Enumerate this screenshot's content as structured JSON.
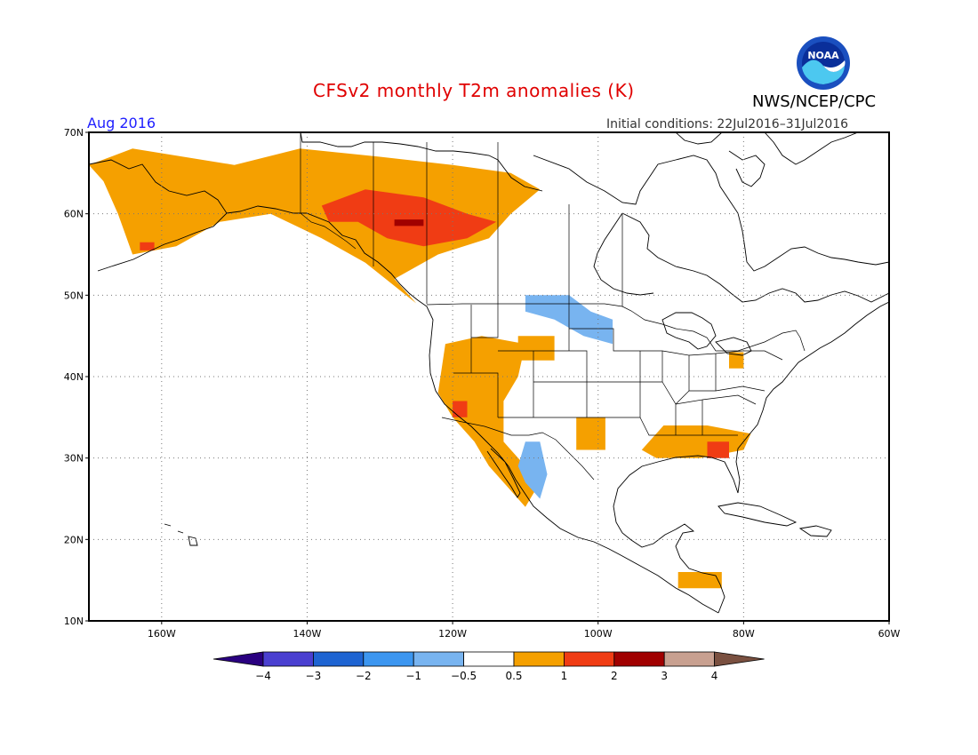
{
  "title": "CFSv2 monthly T2m anomalies (K)",
  "month_label": "Aug 2016",
  "initial_conditions": "Initial conditions: 22Jul2016–31Jul2016",
  "org_label": "NWS/NCEP/CPC",
  "logo_text": "NOAA",
  "colors": {
    "title": "#e00000",
    "month": "#2020ff"
  },
  "map": {
    "lon_range": [
      -170,
      -60
    ],
    "lat_range": [
      10,
      70
    ],
    "lat_ticks": [
      {
        "value": 10,
        "label": "10N"
      },
      {
        "value": 20,
        "label": "20N"
      },
      {
        "value": 30,
        "label": "30N"
      },
      {
        "value": 40,
        "label": "40N"
      },
      {
        "value": 50,
        "label": "50N"
      },
      {
        "value": 60,
        "label": "60N"
      },
      {
        "value": 70,
        "label": "70N"
      }
    ],
    "lon_ticks": [
      {
        "value": -160,
        "label": "160W"
      },
      {
        "value": -140,
        "label": "140W"
      },
      {
        "value": -120,
        "label": "120W"
      },
      {
        "value": -100,
        "label": "100W"
      },
      {
        "value": -80,
        "label": "80W"
      },
      {
        "value": -60,
        "label": "60W"
      }
    ]
  },
  "colorbar": {
    "colors": [
      "#2a0080",
      "#4a3fd0",
      "#1e64d2",
      "#3c96f0",
      "#78b4f0",
      "#ffffff",
      "#f5a000",
      "#f03c14",
      "#a00000",
      "#c8a090",
      "#7a5040"
    ],
    "labels": [
      "−4",
      "−3",
      "−2",
      "−1",
      "−0.5",
      "0.5",
      "1",
      "2",
      "3",
      "4"
    ]
  },
  "anomaly_regions": [
    {
      "category": "0.5 to 1",
      "color": "#f5a000",
      "points": [
        [
          -170,
          66
        ],
        [
          -164,
          68
        ],
        [
          -150,
          66
        ],
        [
          -141,
          68
        ],
        [
          -130,
          67
        ],
        [
          -120,
          66
        ],
        [
          -112,
          65
        ],
        [
          -108,
          63
        ],
        [
          -112,
          60
        ],
        [
          -115,
          57
        ],
        [
          -122,
          55
        ],
        [
          -128,
          52
        ],
        [
          -125,
          49
        ],
        [
          -132,
          54
        ],
        [
          -138,
          57
        ],
        [
          -145,
          60
        ],
        [
          -152,
          59
        ],
        [
          -158,
          56
        ],
        [
          -164,
          55
        ],
        [
          -166,
          60
        ],
        [
          -168,
          64
        ]
      ]
    },
    {
      "category": "1 to 2",
      "color": "#f03c14",
      "points": [
        [
          -138,
          61
        ],
        [
          -132,
          63
        ],
        [
          -124,
          62
        ],
        [
          -118,
          60
        ],
        [
          -114,
          59
        ],
        [
          -118,
          57
        ],
        [
          -124,
          56
        ],
        [
          -129,
          57
        ],
        [
          -133,
          59
        ],
        [
          -137,
          59
        ]
      ]
    },
    {
      "category": "2 to 3",
      "color": "#a00000",
      "points": [
        [
          -128,
          59.3
        ],
        [
          -124,
          59.3
        ],
        [
          -124,
          58.5
        ],
        [
          -128,
          58.5
        ]
      ]
    },
    {
      "category": "1 to 2",
      "color": "#f03c14",
      "points": [
        [
          -163,
          56.5
        ],
        [
          -161,
          56.5
        ],
        [
          -161,
          55.5
        ],
        [
          -163,
          55.5
        ]
      ]
    },
    {
      "category": "0.5 to 1",
      "color": "#f5a000",
      "points": [
        [
          -121,
          44
        ],
        [
          -116,
          45
        ],
        [
          -110,
          44
        ],
        [
          -111,
          40
        ],
        [
          -113,
          37
        ],
        [
          -113,
          32
        ],
        [
          -110,
          29
        ],
        [
          -108,
          27
        ],
        [
          -110,
          24
        ],
        [
          -112,
          26
        ],
        [
          -115,
          29
        ],
        [
          -117,
          32
        ],
        [
          -120,
          35
        ],
        [
          -122,
          38
        ]
      ]
    },
    {
      "category": "1 to 2",
      "color": "#f03c14",
      "points": [
        [
          -120,
          37
        ],
        [
          -118,
          37
        ],
        [
          -118,
          35
        ],
        [
          -120,
          35
        ]
      ]
    },
    {
      "category": "0.5 to 1",
      "color": "#f5a000",
      "points": [
        [
          -111,
          45
        ],
        [
          -106,
          45
        ],
        [
          -106,
          42
        ],
        [
          -111,
          42
        ]
      ]
    },
    {
      "category": "0.5 to 1",
      "color": "#f5a000",
      "points": [
        [
          -103,
          35
        ],
        [
          -99,
          35
        ],
        [
          -99,
          31
        ],
        [
          -103,
          31
        ]
      ]
    },
    {
      "category": "0.5 to 1",
      "color": "#f5a000",
      "points": [
        [
          -91,
          34
        ],
        [
          -85,
          34
        ],
        [
          -79,
          33
        ],
        [
          -80,
          31
        ],
        [
          -86,
          30
        ],
        [
          -92,
          30
        ],
        [
          -94,
          31
        ]
      ]
    },
    {
      "category": "1 to 2",
      "color": "#f03c14",
      "points": [
        [
          -85,
          32
        ],
        [
          -82,
          32
        ],
        [
          -82,
          30
        ],
        [
          -85,
          30
        ]
      ]
    },
    {
      "category": "0.5 to 1",
      "color": "#f5a000",
      "points": [
        [
          -89,
          16
        ],
        [
          -83,
          16
        ],
        [
          -83,
          14
        ],
        [
          -89,
          14
        ]
      ]
    },
    {
      "category": "0.5 to 1",
      "color": "#f5a000",
      "points": [
        [
          -82,
          43
        ],
        [
          -80,
          43
        ],
        [
          -80,
          41
        ],
        [
          -82,
          41
        ]
      ]
    },
    {
      "category": "-1 to -0.5",
      "color": "#78b4f0",
      "points": [
        [
          -110,
          50
        ],
        [
          -104,
          50
        ],
        [
          -101,
          48
        ],
        [
          -98,
          47
        ],
        [
          -98,
          44
        ],
        [
          -102,
          45
        ],
        [
          -106,
          47
        ],
        [
          -110,
          48
        ]
      ]
    },
    {
      "category": "-1 to -0.5",
      "color": "#78b4f0",
      "points": [
        [
          -110,
          32
        ],
        [
          -108,
          32
        ],
        [
          -107,
          28
        ],
        [
          -108,
          25
        ],
        [
          -110,
          27
        ],
        [
          -111,
          29
        ]
      ]
    }
  ]
}
